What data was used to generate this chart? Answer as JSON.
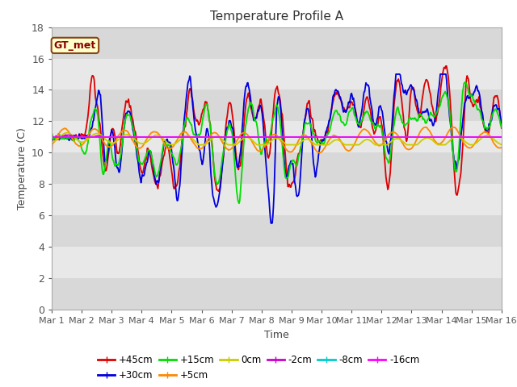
{
  "title": "Temperature Profile A",
  "xlabel": "Time",
  "ylabel": "Temperature (C)",
  "ylim": [
    0,
    18
  ],
  "yticks": [
    0,
    2,
    4,
    6,
    8,
    10,
    12,
    14,
    16,
    18
  ],
  "xtick_labels": [
    "Mar 1",
    "Mar 2",
    "Mar 3",
    "Mar 4",
    "Mar 5",
    "Mar 6",
    "Mar 7",
    "Mar 8",
    "Mar 9",
    "Mar 10",
    "Mar 11",
    "Mar 12",
    "Mar 13",
    "Mar 14",
    "Mar 15",
    "Mar 16"
  ],
  "series_order": [
    "+45cm",
    "+30cm",
    "+15cm",
    "+5cm",
    "0cm",
    "-2cm",
    "-8cm",
    "-16cm"
  ],
  "series": {
    "+45cm": {
      "color": "#dd0000"
    },
    "+30cm": {
      "color": "#0000dd"
    },
    "+15cm": {
      "color": "#00dd00"
    },
    "+5cm": {
      "color": "#ff8800"
    },
    "0cm": {
      "color": "#cccc00"
    },
    "-2cm": {
      "color": "#cc00cc"
    },
    "-8cm": {
      "color": "#00cccc"
    },
    "-16cm": {
      "color": "#ff00ff"
    }
  },
  "annotation_text": "GT_met",
  "legend_row1": [
    "+45cm",
    "+30cm",
    "+15cm",
    "+5cm",
    "0cm",
    "-2cm"
  ],
  "legend_row2": [
    "-8cm",
    "-16cm"
  ],
  "plot_bg_light": "#e8e8e8",
  "plot_bg_dark": "#d8d8d8",
  "fig_bg": "#ffffff"
}
